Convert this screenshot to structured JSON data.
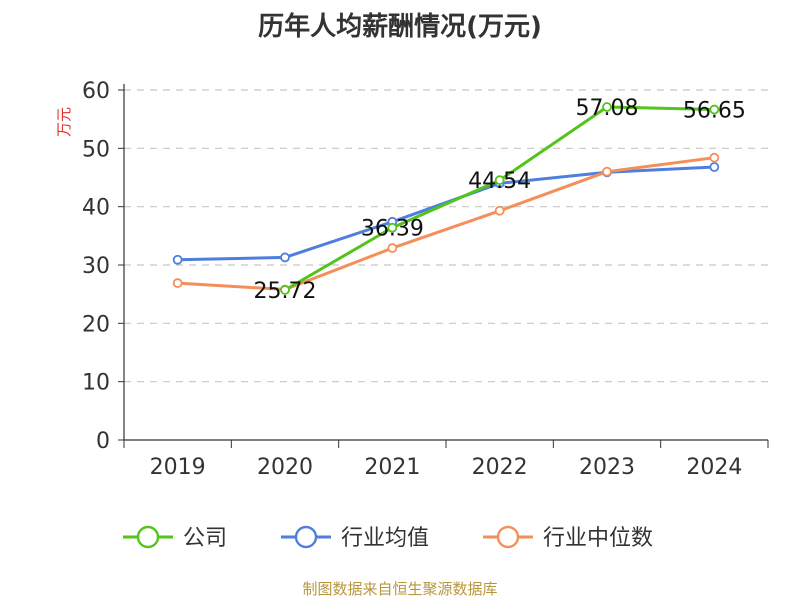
{
  "title": "历年人均薪酬情况(万元)",
  "source": "制图数据来自恒生聚源数据库",
  "chart_data": {
    "type": "line",
    "title": "历年人均薪酬情况(万元)",
    "ylabel": "万元",
    "xlabel": "",
    "ylim": [
      0,
      60
    ],
    "yticks": [
      0,
      10,
      20,
      30,
      40,
      50,
      60
    ],
    "grid": true,
    "legend_position": "bottom",
    "categories": [
      "2019",
      "2020",
      "2021",
      "2022",
      "2023",
      "2024"
    ],
    "series": [
      {
        "name": "公司",
        "color": "#52c41a",
        "values": [
          null,
          25.72,
          36.39,
          44.54,
          57.08,
          56.65
        ],
        "labels": [
          "",
          "25.72",
          "36.39",
          "44.54",
          "57.08",
          "56.65"
        ]
      },
      {
        "name": "行业均值",
        "color": "#4e7fde",
        "values": [
          30.9,
          31.3,
          37.4,
          44.0,
          45.9,
          46.8
        ],
        "labels": [
          "",
          "",
          "",
          "",
          "",
          ""
        ]
      },
      {
        "name": "行业中位数",
        "color": "#f58f5a",
        "values": [
          26.9,
          25.8,
          32.9,
          39.3,
          46.0,
          48.4
        ],
        "labels": [
          "",
          "",
          "",
          "",
          "",
          ""
        ]
      }
    ]
  }
}
